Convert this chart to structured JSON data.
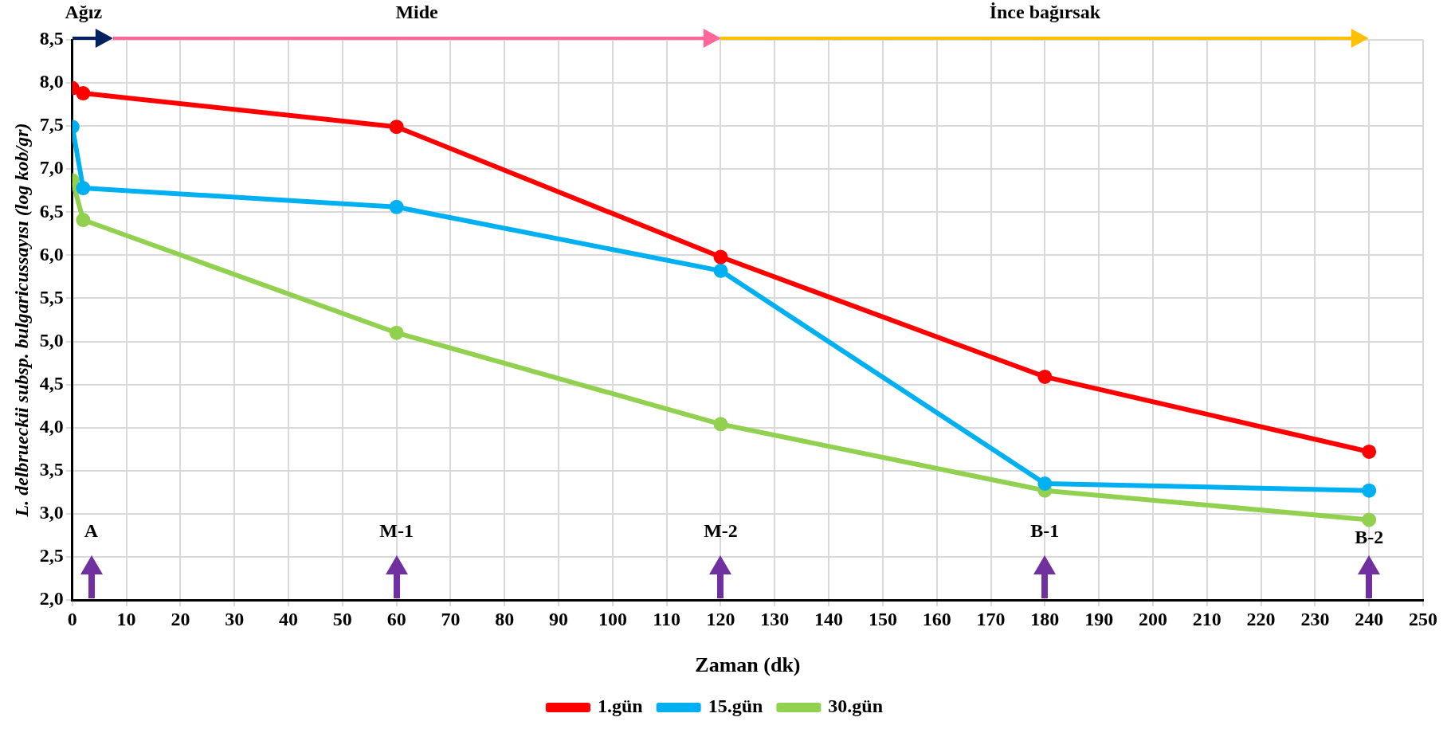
{
  "chart_data": {
    "type": "line",
    "xlabel": "Zaman (dk)",
    "ylabel": "L. delbrueckii subsp. bulgaricussayısı (log kob/gr)",
    "xlim": [
      0,
      250
    ],
    "xticks": [
      0,
      10,
      20,
      30,
      40,
      50,
      60,
      70,
      80,
      90,
      100,
      110,
      120,
      130,
      140,
      150,
      160,
      170,
      180,
      190,
      200,
      210,
      220,
      230,
      240,
      250
    ],
    "ylim": [
      2,
      8.5
    ],
    "yticks": [
      {
        "value": 2,
        "label": "2,0"
      },
      {
        "value": 2.5,
        "label": "2,5"
      },
      {
        "value": 3,
        "label": "3,0"
      },
      {
        "value": 3.5,
        "label": "3,5"
      },
      {
        "value": 4,
        "label": "4,0"
      },
      {
        "value": 4.5,
        "label": "4,5"
      },
      {
        "value": 5,
        "label": "5,0"
      },
      {
        "value": 5.5,
        "label": "5,5"
      },
      {
        "value": 6,
        "label": "6,0"
      },
      {
        "value": 6.5,
        "label": "6,5"
      },
      {
        "value": 7,
        "label": "7,0"
      },
      {
        "value": 7.5,
        "label": "7,5"
      },
      {
        "value": 8,
        "label": "8,0"
      },
      {
        "value": 8.5,
        "label": "8,5"
      }
    ],
    "x": [
      0,
      2,
      60,
      120,
      180,
      240
    ],
    "series": [
      {
        "name": "1.gün",
        "color": "#ff0000",
        "values": [
          7.94,
          7.88,
          7.49,
          5.98,
          4.59,
          3.72
        ]
      },
      {
        "name": "15.gün",
        "color": "#00b0f0",
        "values": [
          7.49,
          6.78,
          6.56,
          5.82,
          3.35,
          3.27
        ]
      },
      {
        "name": "30.gün",
        "color": "#92d050",
        "values": [
          6.87,
          6.41,
          5.1,
          4.04,
          3.27,
          2.93
        ]
      }
    ],
    "annotations": [
      "Ağız",
      "Mide",
      "İnce bağırsak",
      "A",
      "M-1",
      "M-2",
      "B-1",
      "B-2"
    ],
    "grid": true,
    "legend": "bottom",
    "marker": "circle",
    "line_style": "solid"
  }
}
